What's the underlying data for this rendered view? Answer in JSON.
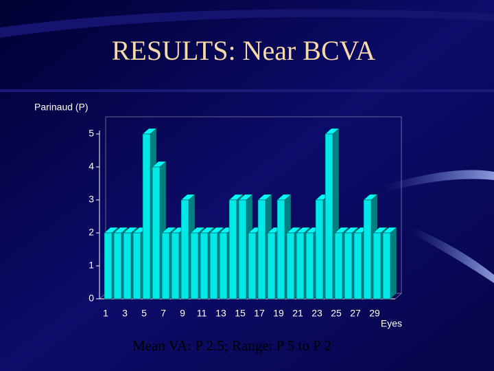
{
  "chart_data": {
    "type": "bar3d",
    "title": "RESULTS: Near BCVA",
    "y_label": "Parinaud (P)",
    "x_label": "Eyes",
    "caption": "Mean VA: P 2.5; Range: P 5 to P 2",
    "categories": [
      "1",
      null,
      "3",
      null,
      "5",
      null,
      "7",
      null,
      "9",
      null,
      "11",
      null,
      "13",
      null,
      "15",
      null,
      "17",
      null,
      "19",
      null,
      "21",
      null,
      "23",
      null,
      "25",
      null,
      "27",
      null,
      "29",
      null
    ],
    "values": [
      2,
      2,
      2,
      2,
      5,
      4,
      2,
      2,
      3,
      2,
      2,
      2,
      2,
      3,
      3,
      2,
      3,
      2,
      3,
      2,
      2,
      2,
      3,
      5,
      2,
      2,
      2,
      3,
      2,
      2
    ],
    "color": "#00e8e8",
    "ylim": [
      0,
      5
    ],
    "yticks": [
      0,
      1,
      2,
      3,
      4,
      5
    ]
  }
}
